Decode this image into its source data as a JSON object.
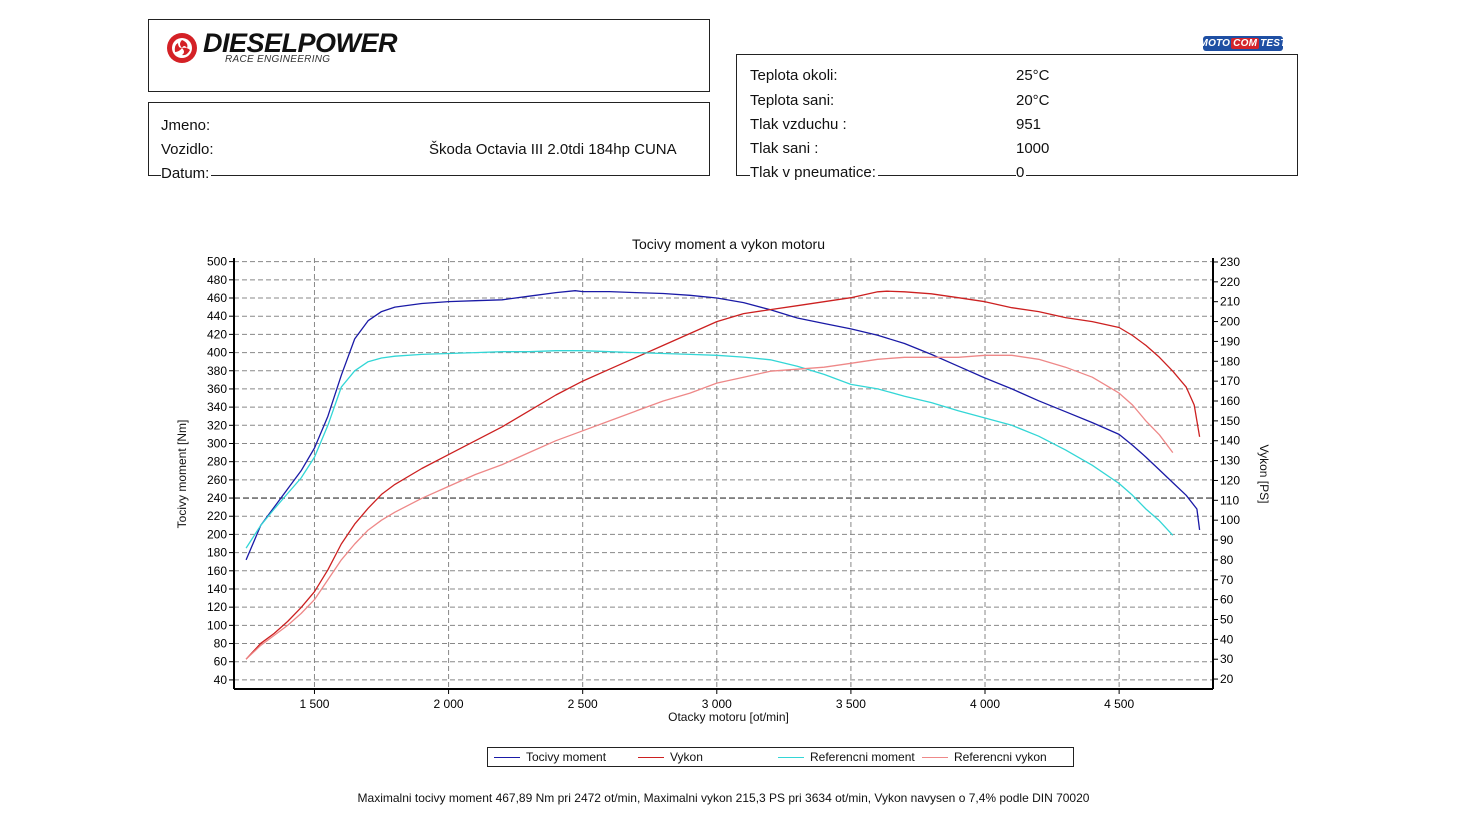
{
  "header": {
    "brand": "DIESELPOWER",
    "brand_sub": "RACE ENGINEERING",
    "partner_logo": {
      "left": "MOTO",
      "mid": "COM",
      "right": "TEST"
    }
  },
  "vehicle_info": {
    "name_label": "Jmeno:",
    "name_value": "",
    "vehicle_label": "Vozidlo:",
    "vehicle_value": "Škoda Octavia III 2.0tdi 184hp CUNA",
    "date_label": "Datum:",
    "date_value": ""
  },
  "conditions": [
    {
      "label": "Teplota okoli:",
      "value": "25°C"
    },
    {
      "label": "Teplota sani:",
      "value": "20°C"
    },
    {
      "label": "Tlak vzduchu :",
      "value": "951"
    },
    {
      "label": "Tlak sani :",
      "value": "1000"
    },
    {
      "label": "Tlak v pneumatice:",
      "value": "0"
    }
  ],
  "chart_data": {
    "type": "line",
    "title": "Tocivy moment a vykon motoru",
    "xlabel": "Otacky motoru [ot/min]",
    "ylabel": "Tocivy moment [Nm]",
    "y2label": "Vykon [PS]",
    "xlim": [
      1200,
      4850
    ],
    "ylim": [
      30,
      500
    ],
    "y2lim": [
      15,
      230
    ],
    "x_ticks": [
      1500,
      2000,
      2500,
      3000,
      3500,
      4000,
      4500
    ],
    "x_tick_labels": [
      "1 500",
      "2 000",
      "2 500",
      "3 000",
      "3 500",
      "4 000",
      "4 500"
    ],
    "y_ticks": [
      40,
      60,
      80,
      100,
      120,
      140,
      160,
      180,
      200,
      220,
      240,
      260,
      280,
      300,
      320,
      340,
      360,
      380,
      400,
      420,
      440,
      460,
      480,
      500
    ],
    "y2_ticks": [
      20,
      30,
      40,
      50,
      60,
      70,
      80,
      90,
      100,
      110,
      120,
      130,
      140,
      150,
      160,
      170,
      180,
      190,
      200,
      210,
      220,
      230
    ],
    "grid": true,
    "legend_position": "bottom",
    "series": [
      {
        "name": "Tocivy moment",
        "axis": "left",
        "color": "#1a1aa6",
        "x": [
          1245,
          1300,
          1350,
          1400,
          1450,
          1500,
          1550,
          1600,
          1650,
          1700,
          1750,
          1800,
          1900,
          2000,
          2100,
          2200,
          2300,
          2400,
          2472,
          2500,
          2600,
          2700,
          2800,
          2900,
          3000,
          3100,
          3200,
          3300,
          3400,
          3500,
          3600,
          3700,
          3800,
          3900,
          4000,
          4100,
          4200,
          4300,
          4400,
          4500,
          4550,
          4600,
          4650,
          4700,
          4750,
          4790,
          4800
        ],
        "y": [
          172,
          210,
          230,
          250,
          270,
          295,
          330,
          375,
          415,
          435,
          445,
          450,
          454,
          456,
          457,
          458,
          462,
          466,
          468,
          467,
          467,
          466,
          465,
          463,
          460,
          455,
          447,
          438,
          432,
          426,
          419,
          410,
          398,
          385,
          372,
          360,
          347,
          335,
          323,
          310,
          298,
          285,
          271,
          257,
          243,
          228,
          205
        ]
      },
      {
        "name": "Vykon",
        "axis": "right",
        "color": "#cc2020",
        "x": [
          1245,
          1300,
          1350,
          1400,
          1450,
          1500,
          1550,
          1600,
          1650,
          1700,
          1750,
          1800,
          1900,
          2000,
          2100,
          2200,
          2300,
          2400,
          2500,
          2600,
          2700,
          2800,
          2900,
          3000,
          3100,
          3200,
          3300,
          3400,
          3500,
          3600,
          3634,
          3700,
          3800,
          3900,
          4000,
          4100,
          4200,
          4300,
          4400,
          4500,
          4550,
          4600,
          4650,
          4700,
          4750,
          4780,
          4800
        ],
        "y": [
          30,
          38,
          43,
          49,
          56,
          64,
          75,
          88,
          98,
          106,
          113,
          118,
          126,
          133,
          140,
          147,
          155,
          163,
          170,
          176,
          182,
          188,
          194,
          200,
          204,
          206,
          208,
          210,
          212,
          215,
          215.3,
          215,
          214,
          212,
          210,
          207,
          205,
          202,
          200,
          197,
          193,
          188,
          182,
          175,
          167,
          158,
          142
        ]
      },
      {
        "name": "Referencni moment",
        "axis": "left",
        "color": "#33d6d6",
        "x": [
          1245,
          1300,
          1350,
          1400,
          1450,
          1500,
          1550,
          1600,
          1650,
          1700,
          1750,
          1800,
          1900,
          2000,
          2100,
          2200,
          2300,
          2400,
          2500,
          2600,
          2700,
          2800,
          2900,
          3000,
          3100,
          3200,
          3300,
          3400,
          3500,
          3600,
          3700,
          3800,
          3900,
          4000,
          4100,
          4200,
          4300,
          4400,
          4500,
          4550,
          4600,
          4650,
          4700
        ],
        "y": [
          185,
          210,
          228,
          245,
          262,
          285,
          320,
          362,
          380,
          390,
          394,
          396,
          398,
          399,
          400,
          401,
          401,
          402,
          402,
          401,
          400,
          399,
          398,
          397,
          395,
          392,
          385,
          376,
          365,
          360,
          352,
          345,
          336,
          328,
          320,
          308,
          293,
          276,
          256,
          243,
          228,
          215,
          199
        ]
      },
      {
        "name": "Referencni vykon",
        "axis": "right",
        "color": "#ee8888",
        "x": [
          1245,
          1300,
          1350,
          1400,
          1450,
          1500,
          1550,
          1600,
          1650,
          1700,
          1750,
          1800,
          1900,
          2000,
          2100,
          2200,
          2300,
          2400,
          2500,
          2600,
          2700,
          2800,
          2900,
          3000,
          3100,
          3200,
          3300,
          3400,
          3500,
          3600,
          3700,
          3800,
          3900,
          4000,
          4100,
          4200,
          4300,
          4400,
          4500,
          4550,
          4600,
          4650,
          4700
        ],
        "y": [
          30,
          37,
          42,
          47,
          53,
          60,
          70,
          80,
          88,
          95,
          100,
          104,
          111,
          117,
          123,
          128,
          134,
          140,
          145,
          150,
          155,
          160,
          164,
          169,
          172,
          175,
          176,
          177,
          179,
          181,
          182,
          182,
          182,
          183,
          183,
          181,
          177,
          172,
          164,
          158,
          150,
          143,
          134
        ]
      }
    ]
  },
  "footer_text": "Maximalni tocivy moment 467,89 Nm pri 2472 ot/min,  Maximalni vykon 215,3 PS pri 3634 ot/min,  Vykon navysen o 7,4% podle DIN 70020"
}
